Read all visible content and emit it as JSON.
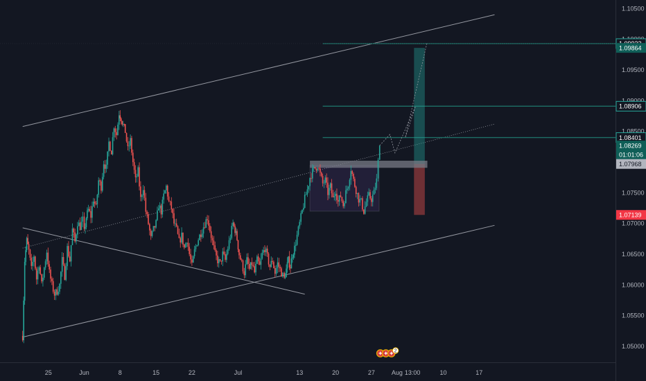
{
  "colors": {
    "background": "#131722",
    "axis_background": "#131722",
    "text": "#b2b5be",
    "bull": "#26a69a",
    "bear": "#ef5350",
    "trendline": "#9598a1",
    "level": "#1e6f66",
    "target_zone": "#26a69a",
    "stop_zone": "#ef5350",
    "price_tag_teal": "#0f5e57",
    "price_tag_current": "#b2b5be",
    "price_tag_stop": "#f23645"
  },
  "chart_data": {
    "type": "candlestick",
    "x_ticks": [
      {
        "label": "25",
        "day": -7
      },
      {
        "label": "Jun",
        "day": 0
      },
      {
        "label": "8",
        "day": 7
      },
      {
        "label": "15",
        "day": 14
      },
      {
        "label": "22",
        "day": 21
      },
      {
        "label": "Jul",
        "day": 30
      },
      {
        "label": "13",
        "day": 42
      },
      {
        "label": "20",
        "day": 49
      },
      {
        "label": "27",
        "day": 56
      },
      {
        "label": "Aug",
        "day": 61
      },
      {
        "label": "13:00",
        "day": 64
      },
      {
        "label": "10",
        "day": 70
      },
      {
        "label": "17",
        "day": 77
      }
    ],
    "y_ticks": [
      "1.10500",
      "1.10000",
      "1.09500",
      "1.09000",
      "1.08500",
      "1.08000",
      "1.07500",
      "1.07000",
      "1.06500",
      "1.06000",
      "1.05500",
      "1.05000"
    ],
    "ylim": [
      1.0474,
      1.1064
    ],
    "close_path": [
      [
        -12.0,
        1.0517
      ],
      [
        -11.6,
        1.064
      ],
      [
        -11.2,
        1.0672
      ],
      [
        -10.8,
        1.0655
      ],
      [
        -10.3,
        1.0625
      ],
      [
        -9.8,
        1.0648
      ],
      [
        -9.3,
        1.061
      ],
      [
        -8.8,
        1.0635
      ],
      [
        -8.3,
        1.06
      ],
      [
        -7.8,
        1.0628
      ],
      [
        -7.3,
        1.0655
      ],
      [
        -6.8,
        1.062
      ],
      [
        -6.3,
        1.06
      ],
      [
        -5.8,
        1.0585
      ],
      [
        -5.3,
        1.059
      ],
      [
        -4.8,
        1.06
      ],
      [
        -4.3,
        1.064
      ],
      [
        -3.8,
        1.0615
      ],
      [
        -3.3,
        1.066
      ],
      [
        -2.8,
        1.064
      ],
      [
        -2.3,
        1.069
      ],
      [
        -1.8,
        1.067
      ],
      [
        -1.3,
        1.0702
      ],
      [
        -0.8,
        1.0695
      ],
      [
        -0.3,
        1.0706
      ],
      [
        0.0,
        1.0685
      ],
      [
        0.4,
        1.071
      ],
      [
        0.8,
        1.0722
      ],
      [
        1.3,
        1.0712
      ],
      [
        1.8,
        1.074
      ],
      [
        2.3,
        1.0725
      ],
      [
        2.8,
        1.077
      ],
      [
        3.3,
        1.076
      ],
      [
        3.8,
        1.08
      ],
      [
        4.3,
        1.079
      ],
      [
        4.8,
        1.0832
      ],
      [
        5.3,
        1.0818
      ],
      [
        5.8,
        1.086
      ],
      [
        6.3,
        1.0845
      ],
      [
        6.8,
        1.088
      ],
      [
        7.2,
        1.0872
      ],
      [
        7.6,
        1.086
      ],
      [
        8.0,
        1.085
      ],
      [
        8.5,
        1.082
      ],
      [
        9.0,
        1.0835
      ],
      [
        9.5,
        1.08
      ],
      [
        10.0,
        1.077
      ],
      [
        10.5,
        1.0785
      ],
      [
        11.0,
        1.074
      ],
      [
        11.5,
        1.076
      ],
      [
        12.0,
        1.072
      ],
      [
        12.5,
        1.07
      ],
      [
        13.0,
        1.0675
      ],
      [
        13.5,
        1.069
      ],
      [
        14.0,
        1.07
      ],
      [
        14.5,
        1.073
      ],
      [
        15.0,
        1.072
      ],
      [
        15.5,
        1.0745
      ],
      [
        16.0,
        1.076
      ],
      [
        16.5,
        1.0735
      ],
      [
        17.0,
        1.0725
      ],
      [
        17.5,
        1.07
      ],
      [
        18.0,
        1.069
      ],
      [
        18.5,
        1.067
      ],
      [
        19.0,
        1.068
      ],
      [
        19.5,
        1.066
      ],
      [
        20.0,
        1.0675
      ],
      [
        20.5,
        1.065
      ],
      [
        21.0,
        1.063
      ],
      [
        21.5,
        1.0655
      ],
      [
        22.0,
        1.067
      ],
      [
        22.5,
        1.068
      ],
      [
        23.0,
        1.069
      ],
      [
        23.5,
        1.07
      ],
      [
        24.0,
        1.071
      ],
      [
        24.5,
        1.069
      ],
      [
        25.0,
        1.067
      ],
      [
        25.5,
        1.065
      ],
      [
        26.0,
        1.064
      ],
      [
        26.5,
        1.0635
      ],
      [
        27.0,
        1.065
      ],
      [
        27.5,
        1.064
      ],
      [
        28.0,
        1.066
      ],
      [
        28.5,
        1.068
      ],
      [
        29.0,
        1.07
      ],
      [
        29.4,
        1.069
      ],
      [
        29.8,
        1.0675
      ],
      [
        30.2,
        1.065
      ],
      [
        30.7,
        1.0635
      ],
      [
        31.2,
        1.062
      ],
      [
        31.7,
        1.064
      ],
      [
        32.2,
        1.0625
      ],
      [
        32.7,
        1.0635
      ],
      [
        33.2,
        1.062
      ],
      [
        33.7,
        1.064
      ],
      [
        34.2,
        1.063
      ],
      [
        34.7,
        1.065
      ],
      [
        35.2,
        1.066
      ],
      [
        35.7,
        1.0645
      ],
      [
        36.2,
        1.063
      ],
      [
        36.7,
        1.064
      ],
      [
        37.2,
        1.062
      ],
      [
        37.7,
        1.0635
      ],
      [
        38.2,
        1.0625
      ],
      [
        38.7,
        1.0615
      ],
      [
        39.0,
        1.061
      ],
      [
        39.4,
        1.0625
      ],
      [
        39.8,
        1.064
      ],
      [
        40.2,
        1.063
      ],
      [
        40.6,
        1.065
      ],
      [
        41.0,
        1.066
      ],
      [
        41.5,
        1.068
      ],
      [
        42.0,
        1.07
      ],
      [
        42.5,
        1.072
      ],
      [
        43.0,
        1.074
      ],
      [
        43.5,
        1.0755
      ],
      [
        44.0,
        1.0775
      ],
      [
        44.5,
        1.0785
      ],
      [
        45.0,
        1.079
      ],
      [
        45.5,
        1.0795
      ],
      [
        46.0,
        1.078
      ],
      [
        46.5,
        1.0765
      ],
      [
        47.0,
        1.077
      ],
      [
        47.5,
        1.075
      ],
      [
        48.0,
        1.076
      ],
      [
        48.5,
        1.074
      ],
      [
        49.0,
        1.0755
      ],
      [
        49.5,
        1.0735
      ],
      [
        50.0,
        1.0745
      ],
      [
        50.5,
        1.073
      ],
      [
        51.0,
        1.075
      ],
      [
        51.5,
        1.0765
      ],
      [
        52.0,
        1.079
      ],
      [
        52.5,
        1.077
      ],
      [
        53.0,
        1.0755
      ],
      [
        53.5,
        1.074
      ],
      [
        54.0,
        1.0735
      ],
      [
        54.5,
        1.072
      ],
      [
        55.0,
        1.0735
      ],
      [
        55.5,
        1.0745
      ],
      [
        56.0,
        1.074
      ],
      [
        56.5,
        1.075
      ],
      [
        57.0,
        1.077
      ],
      [
        57.3,
        1.08
      ],
      [
        57.6,
        1.0827
      ]
    ],
    "price_labels": [
      {
        "label": "1.09932",
        "value": 1.0993,
        "style": "level"
      },
      {
        "label": "1.09864",
        "value": 1.0986,
        "style": "teal"
      },
      {
        "label": "1.08906",
        "value": 1.0891,
        "style": "level"
      },
      {
        "label": "1.08401",
        "value": 1.084,
        "style": "level"
      },
      {
        "label": "1.08269",
        "value": 1.0827,
        "style": "teal"
      },
      {
        "label": "01:01:06",
        "value": 1.0812,
        "style": "teal"
      },
      {
        "label": "1.07968",
        "value": 1.0797,
        "style": "current"
      },
      {
        "label": "1.07139",
        "value": 1.0714,
        "style": "stop"
      }
    ],
    "horizontal_levels": [
      {
        "value": 1.0993,
        "from_day": 46.5
      },
      {
        "value": 1.0891,
        "from_day": 46.5
      },
      {
        "value": 1.084,
        "from_day": 46.5
      }
    ],
    "position": {
      "from_day": 64.3,
      "to_day": 66.4,
      "entry": 1.0797,
      "target": 1.0986,
      "stop": 1.0714
    },
    "entry_zone": {
      "from_day": 44.0,
      "to_day": 66.9,
      "top": 1.08,
      "bottom": 1.0793
    },
    "consolidation_box": {
      "from_day": 44.0,
      "to_day": 57.5,
      "top": 1.0795,
      "bottom": 1.072
    },
    "trendlines": [
      {
        "from": [
          -12,
          1.0858
        ],
        "to": [
          80,
          1.104
        ],
        "style": "solid"
      },
      {
        "from": [
          -12,
          1.0515
        ],
        "to": [
          80,
          1.0697
        ],
        "style": "solid"
      },
      {
        "from": [
          -12,
          1.0693
        ],
        "to": [
          43,
          1.0585
        ],
        "style": "solid"
      },
      {
        "from": [
          -12,
          1.066
        ],
        "to": [
          80,
          1.0862
        ],
        "style": "dotted"
      }
    ],
    "projection": [
      [
        57.6,
        1.0827
      ],
      [
        59.6,
        1.0845
      ],
      [
        60.6,
        1.0815
      ],
      [
        64.6,
        1.0891
      ],
      [
        62.6,
        1.084
      ],
      [
        66.8,
        1.0993
      ]
    ],
    "event_markers": {
      "day": 58.0,
      "count": "2"
    }
  }
}
